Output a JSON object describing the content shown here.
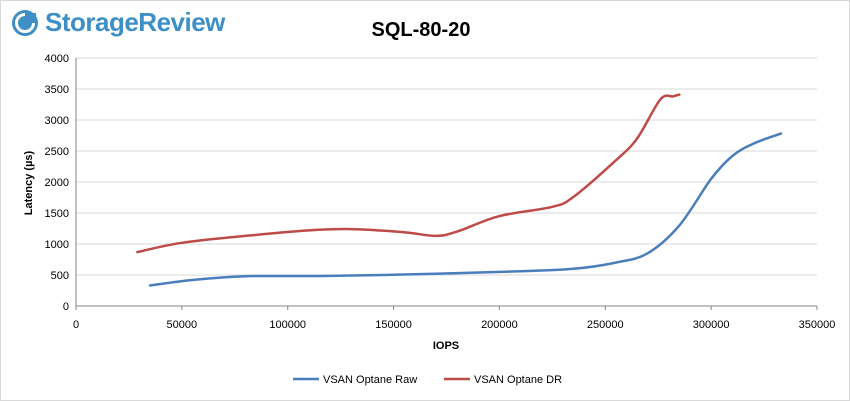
{
  "brand": {
    "logo_text": "StorageReview"
  },
  "colors": {
    "logo": "#3d8fc6",
    "raw": "#4a7ebb",
    "dr": "#be4b48",
    "grid": "#d9d9d9",
    "axis": "#868686"
  },
  "chart_data": {
    "type": "line",
    "title": "SQL-80-20",
    "xlabel": "IOPS",
    "ylabel": "Latency (µs)",
    "xlim": [
      0,
      350000
    ],
    "ylim": [
      0,
      4000
    ],
    "x_ticks": [
      "0",
      "50000",
      "100000",
      "150000",
      "200000",
      "250000",
      "300000",
      "350000"
    ],
    "y_ticks": [
      "0",
      "500",
      "1000",
      "1500",
      "2000",
      "2500",
      "3000",
      "3500",
      "4000"
    ],
    "grid": "horizontal",
    "legend_position": "bottom",
    "series": [
      {
        "name": "VSAN Optane Raw",
        "color": "#4a7ebb",
        "x": [
          35000,
          55000,
          80000,
          120000,
          170000,
          210000,
          235000,
          255000,
          270000,
          285000,
          300000,
          310000,
          320000,
          333000
        ],
        "y": [
          330,
          420,
          480,
          485,
          520,
          560,
          600,
          700,
          850,
          1300,
          2050,
          2420,
          2620,
          2780
        ]
      },
      {
        "name": "VSAN Optane DR",
        "color": "#be4b48",
        "x": [
          29000,
          50000,
          80000,
          110000,
          130000,
          155000,
          170000,
          180000,
          200000,
          225000,
          235000,
          255000,
          265000,
          276000,
          282000,
          285000
        ],
        "y": [
          870,
          1020,
          1130,
          1220,
          1240,
          1190,
          1130,
          1200,
          1450,
          1600,
          1760,
          2350,
          2700,
          3330,
          3380,
          3410
        ]
      }
    ]
  }
}
